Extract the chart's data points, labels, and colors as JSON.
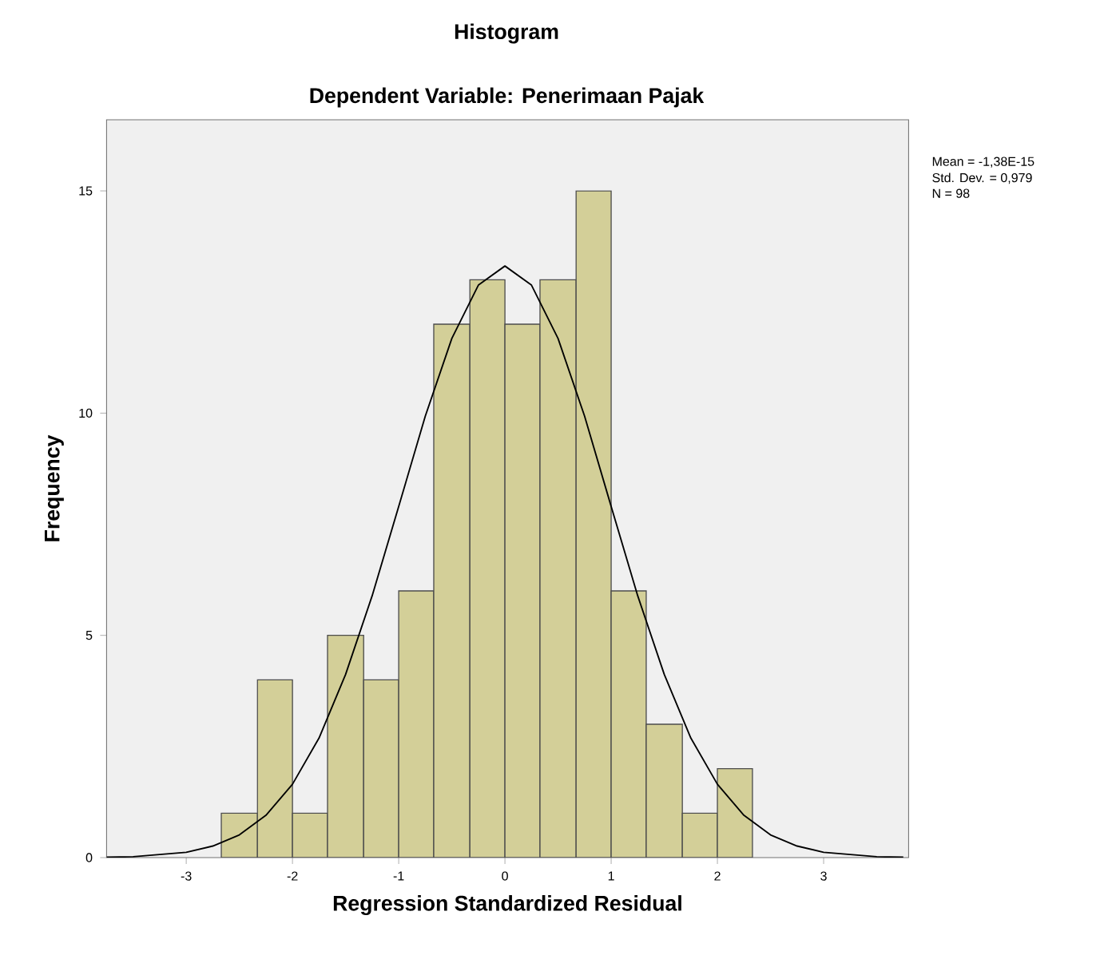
{
  "chart_data": {
    "type": "histogram",
    "title": "Histogram",
    "subtitle": "Dependent Variable: Penerimaan Pajak",
    "xlabel": "Regression Standardized Residual",
    "ylabel": "Frequency",
    "bins": [
      -2.67,
      -2.33,
      -2.0,
      -1.67,
      -1.33,
      -1.0,
      -0.67,
      -0.33,
      0.0,
      0.33,
      0.67,
      1.0,
      1.33,
      1.67,
      2.0,
      2.33
    ],
    "values": [
      1,
      4,
      1,
      5,
      4,
      6,
      12,
      13,
      12,
      13,
      15,
      6,
      3,
      1,
      2
    ],
    "color": "#d3cf98",
    "series": [
      {
        "type": "line",
        "color": "#000000",
        "x": [
          -3.75,
          -3.5,
          -3.0,
          -2.75,
          -2.5,
          -2.25,
          -2.0,
          -1.75,
          -1.5,
          -1.25,
          -1.0,
          -0.75,
          -0.5,
          -0.25,
          0.0,
          0.25,
          0.5,
          0.75,
          1.0,
          1.25,
          1.5,
          1.75,
          2.0,
          2.25,
          2.5,
          2.75,
          3.0,
          3.5,
          3.75
        ],
        "values": [
          0.01,
          0.02,
          0.12,
          0.26,
          0.51,
          0.95,
          1.65,
          2.69,
          4.12,
          5.89,
          7.9,
          9.93,
          11.68,
          12.88,
          13.31,
          12.88,
          11.68,
          9.93,
          7.9,
          5.89,
          4.12,
          2.69,
          1.65,
          0.95,
          0.51,
          0.26,
          0.12,
          0.02,
          0.01
        ]
      }
    ],
    "xlim": [
      -3.75,
      3.8
    ],
    "ylim": [
      0,
      16.6
    ],
    "xticks": [
      -3,
      -2,
      -1,
      0,
      1,
      2,
      3
    ],
    "yticks": [
      0,
      5,
      10,
      15
    ],
    "annotations": [
      "Mean = -1,38E-15",
      "Std. Dev. = 0,979",
      "N = 98"
    ]
  }
}
